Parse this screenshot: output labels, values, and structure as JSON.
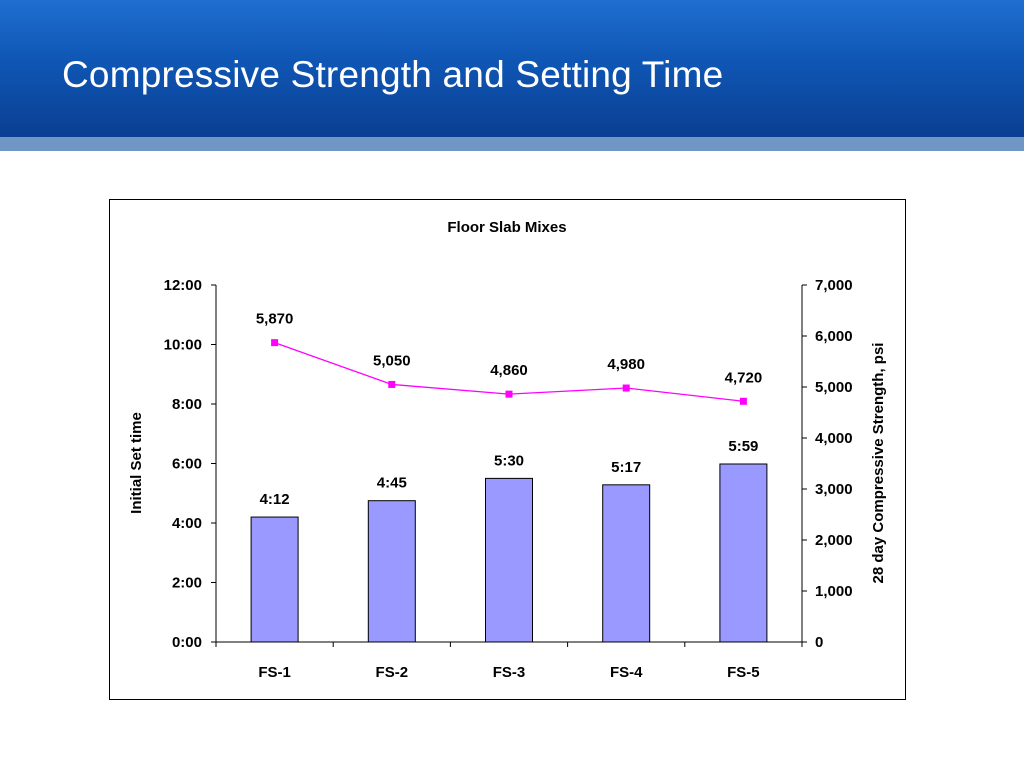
{
  "slide": {
    "title": "Compressive Strength and Setting Time"
  },
  "colors": {
    "header_top": "#1f6fd0",
    "header_bottom": "#0a3f92",
    "header_stripe": "#6f96c4",
    "bar_fill": "#9999ff",
    "line_color": "#ff00ff"
  },
  "chart_data": {
    "type": "bar",
    "title": "Floor Slab Mixes",
    "categories": [
      "FS-1",
      "FS-2",
      "FS-3",
      "FS-4",
      "FS-5"
    ],
    "grid": false,
    "legend": "none",
    "y_left": {
      "label": "Initial Set time",
      "ticks": [
        "0:00",
        "2:00",
        "4:00",
        "6:00",
        "8:00",
        "10:00",
        "12:00"
      ],
      "range_minutes": [
        0,
        720
      ]
    },
    "y_right": {
      "label": "28 day Compressive Strength, psi",
      "ticks": [
        "0",
        "1,000",
        "2,000",
        "3,000",
        "4,000",
        "5,000",
        "6,000",
        "7,000"
      ],
      "range": [
        0,
        7000
      ]
    },
    "series": [
      {
        "type": "bar",
        "axis": "left",
        "values_minutes": [
          252,
          285,
          330,
          317,
          359
        ],
        "labels": [
          "4:12",
          "4:45",
          "5:30",
          "5:17",
          "5:59"
        ]
      },
      {
        "type": "line",
        "axis": "right",
        "values": [
          5870,
          5050,
          4860,
          4980,
          4720
        ],
        "labels": [
          "5,870",
          "5,050",
          "4,860",
          "4,980",
          "4,720"
        ]
      }
    ]
  }
}
